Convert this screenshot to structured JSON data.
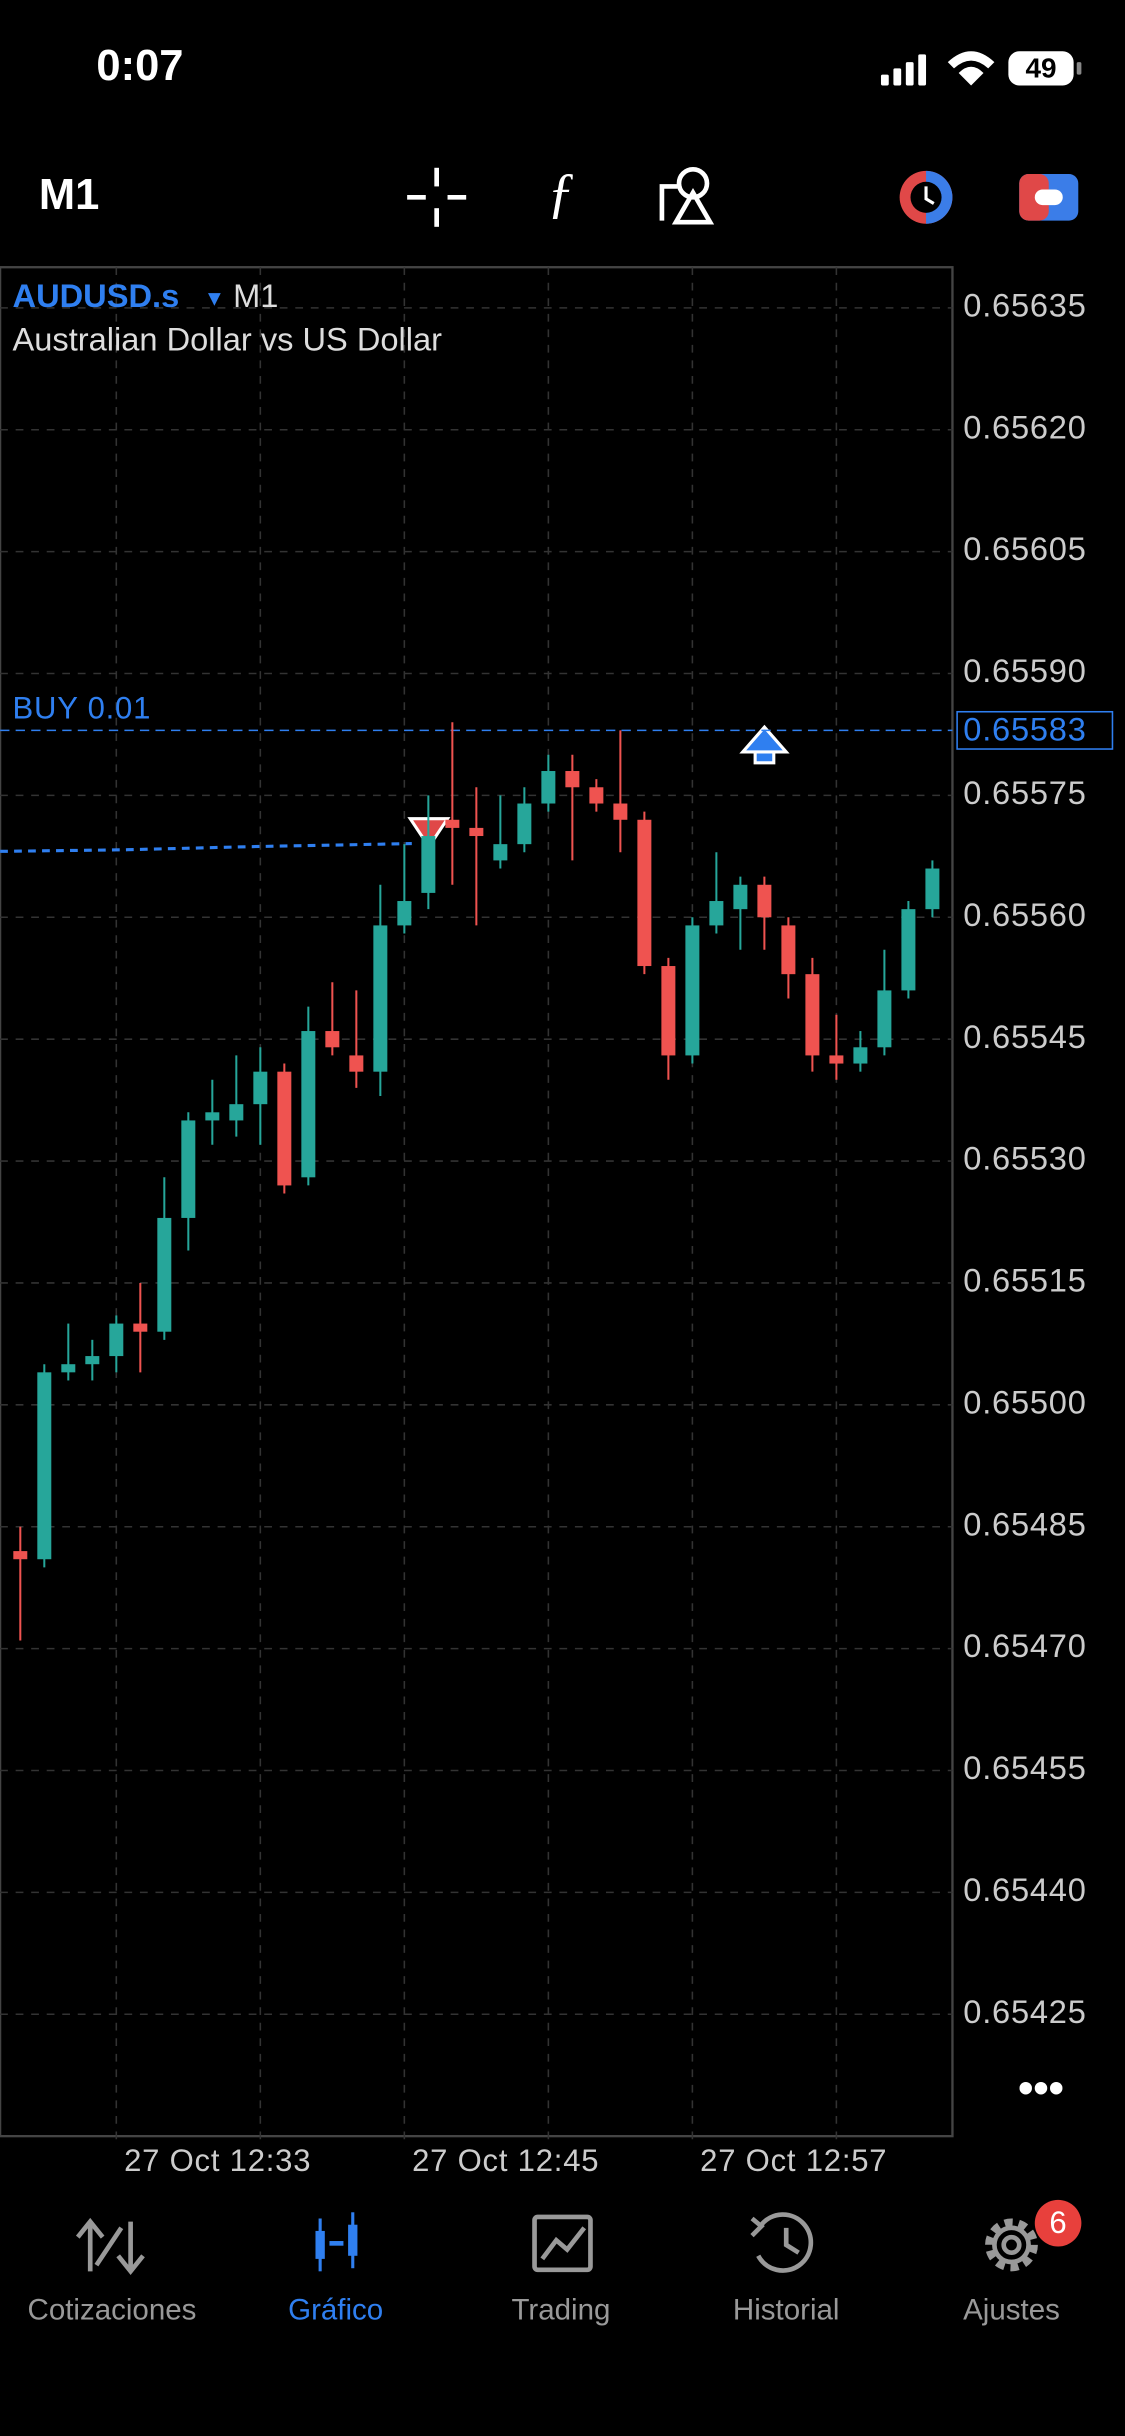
{
  "status_bar": {
    "time": "0:07",
    "battery": "49"
  },
  "toolbar": {
    "timeframe": "M1"
  },
  "chart_data": {
    "type": "candlestick",
    "symbol": "AUDUSD.s",
    "timeframe": "M1",
    "subtitle": "Australian Dollar vs US Dollar",
    "categories": [
      null,
      null,
      null,
      null,
      "27 Oct 12:33",
      null,
      null,
      null,
      null,
      null,
      null,
      null,
      null,
      null,
      null,
      null,
      "27 Oct 12:45",
      null,
      null,
      null,
      null,
      null,
      null,
      null,
      null,
      null,
      null,
      null,
      "27 Oct 12:57",
      null,
      null,
      null,
      null,
      null,
      null,
      null,
      null,
      null,
      null
    ],
    "open": [
      0.65482,
      0.65481,
      0.65504,
      0.65505,
      0.65506,
      0.6551,
      0.65509,
      0.65523,
      0.65535,
      0.65535,
      0.65537,
      0.65541,
      0.65528,
      0.65546,
      0.65543,
      0.65541,
      0.65559,
      0.65563,
      0.65572,
      0.65571,
      0.65567,
      0.65569,
      0.65574,
      0.65578,
      0.65576,
      0.65574,
      0.65572,
      0.65554,
      0.65543,
      0.65559,
      0.65561,
      0.65564,
      0.65559,
      0.65553,
      0.65543,
      0.65542,
      0.65544,
      0.65551,
      0.65561
    ],
    "high": [
      0.65485,
      0.65505,
      0.6551,
      0.65508,
      0.65511,
      0.65515,
      0.65528,
      0.65536,
      0.6554,
      0.65543,
      0.65544,
      0.65542,
      0.65549,
      0.65552,
      0.65551,
      0.65564,
      0.65569,
      0.65575,
      0.65584,
      0.65576,
      0.65575,
      0.65576,
      0.6558,
      0.6558,
      0.65577,
      0.65583,
      0.65573,
      0.65555,
      0.6556,
      0.65568,
      0.65565,
      0.65565,
      0.6556,
      0.65555,
      0.65548,
      0.65546,
      0.65556,
      0.65562,
      0.65567
    ],
    "low": [
      0.65471,
      0.6548,
      0.65503,
      0.65503,
      0.65504,
      0.65504,
      0.65508,
      0.65519,
      0.65532,
      0.65533,
      0.65532,
      0.65526,
      0.65527,
      0.65543,
      0.65539,
      0.65538,
      0.65558,
      0.65561,
      0.65564,
      0.65559,
      0.65566,
      0.65568,
      0.65573,
      0.65567,
      0.65573,
      0.65568,
      0.65553,
      0.6554,
      0.65542,
      0.65558,
      0.65556,
      0.65556,
      0.6555,
      0.65541,
      0.6554,
      0.65541,
      0.65543,
      0.6555,
      0.6556
    ],
    "close": [
      0.65481,
      0.65504,
      0.65505,
      0.65506,
      0.6551,
      0.65509,
      0.65523,
      0.65535,
      0.65536,
      0.65537,
      0.65541,
      0.65527,
      0.65546,
      0.65544,
      0.65541,
      0.65559,
      0.65562,
      0.6557,
      0.65571,
      0.6557,
      0.65569,
      0.65574,
      0.65578,
      0.65576,
      0.65574,
      0.65572,
      0.65554,
      0.65543,
      0.65559,
      0.65562,
      0.65564,
      0.6556,
      0.65553,
      0.65543,
      0.65542,
      0.65544,
      0.65551,
      0.65561,
      0.65566
    ],
    "up_color": "#26a69a",
    "down_color": "#ef5350",
    "ylim": [
      0.6541,
      0.6564
    ],
    "yticks": [
      0.65635,
      {
        "value": 0.6562,
        "label": "0.65620"
      },
      0.65605,
      {
        "value": 0.6559,
        "label": "0.65590"
      },
      0.65575,
      {
        "value": 0.6556,
        "label": "0.65560"
      },
      0.65545,
      {
        "value": 0.6553,
        "label": "0.65530"
      },
      0.65515,
      {
        "value": 0.655,
        "label": "0.65500"
      },
      0.65485,
      {
        "value": 0.6547,
        "label": "0.65470"
      },
      0.65455,
      {
        "value": 0.6544,
        "label": "0.65440"
      },
      0.65425
    ],
    "grid": true,
    "order_line": {
      "label": "BUY 0.01",
      "value": 0.65583,
      "color": "#2f7ff0"
    }
  },
  "tabs": [
    {
      "label": "Cotizaciones"
    },
    {
      "label": "Gráfico"
    },
    {
      "label": "Trading"
    },
    {
      "label": "Historial"
    },
    {
      "label": "Ajustes",
      "badge": "6"
    }
  ]
}
